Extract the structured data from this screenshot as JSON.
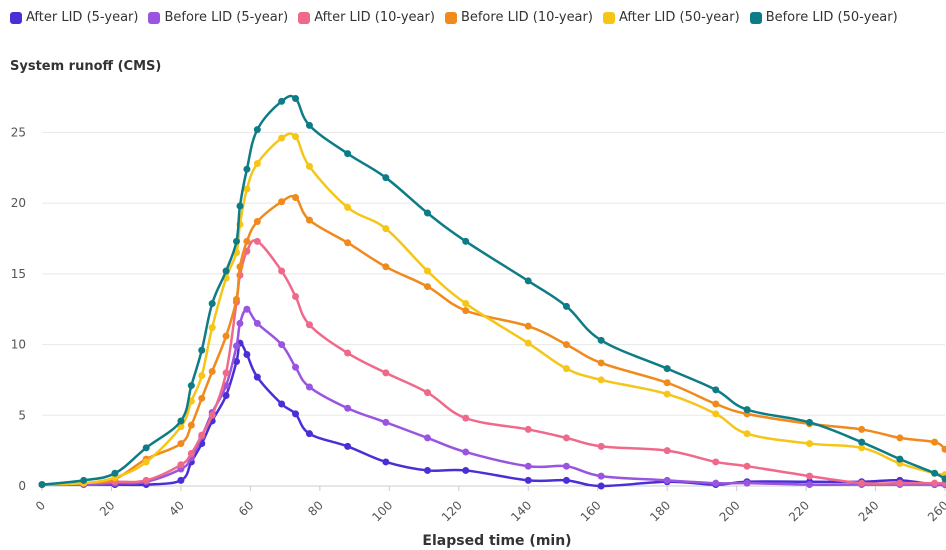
{
  "chart_data": {
    "type": "line",
    "y_title": "System runoff (CMS)",
    "x_label": "Elapsed time (min)",
    "x": [
      0,
      12,
      21,
      30,
      40,
      43,
      46,
      49,
      53,
      56,
      57,
      59,
      62,
      69,
      73,
      77,
      88,
      99,
      111,
      122,
      140,
      151,
      161,
      180,
      194,
      203,
      221,
      236,
      247,
      257,
      260
    ],
    "xlim": [
      0,
      260
    ],
    "xticks": [
      0,
      20,
      40,
      60,
      80,
      100,
      120,
      140,
      160,
      180,
      200,
      220,
      240,
      260
    ],
    "ylim": [
      0,
      28
    ],
    "yticks": [
      0,
      5,
      10,
      15,
      20,
      25
    ],
    "grid": true,
    "series": [
      {
        "name": "After LID (5-year)",
        "color": "#4a2fd6",
        "values": [
          0.1,
          0.1,
          0.1,
          0.1,
          0.4,
          1.7,
          3.0,
          4.6,
          6.4,
          8.8,
          10.1,
          9.3,
          7.7,
          5.8,
          5.1,
          3.7,
          2.8,
          1.7,
          1.1,
          1.1,
          0.4,
          0.4,
          0.0,
          0.3,
          0.1,
          0.3,
          0.3,
          0.3,
          0.4,
          0.1,
          0.1
        ]
      },
      {
        "name": "Before LID (5-year)",
        "color": "#9a55e0",
        "values": [
          0.1,
          0.1,
          0.2,
          0.3,
          1.2,
          2.0,
          3.5,
          5.2,
          7.1,
          9.9,
          11.5,
          12.5,
          11.5,
          10.0,
          8.4,
          7.0,
          5.5,
          4.5,
          3.4,
          2.4,
          1.4,
          1.4,
          0.7,
          0.4,
          0.2,
          0.2,
          0.1,
          0.1,
          0.1,
          0.1,
          0.1
        ]
      },
      {
        "name": "After LID (10-year)",
        "color": "#ef6a8a",
        "values": [
          0.1,
          0.2,
          0.3,
          0.4,
          1.5,
          2.3,
          3.6,
          5.0,
          8.0,
          13.0,
          14.9,
          16.6,
          17.3,
          15.2,
          13.4,
          11.4,
          9.4,
          8.0,
          6.6,
          4.8,
          4.0,
          3.4,
          2.8,
          2.5,
          1.7,
          1.4,
          0.7,
          0.2,
          0.2,
          0.2,
          0.2
        ]
      },
      {
        "name": "Before LID (10-year)",
        "color": "#f08a1c",
        "values": [
          0.1,
          0.2,
          0.5,
          1.9,
          3.0,
          4.3,
          6.2,
          8.1,
          10.6,
          13.2,
          15.5,
          17.3,
          18.7,
          20.1,
          20.4,
          18.8,
          17.2,
          15.5,
          14.1,
          12.4,
          11.3,
          10.0,
          8.7,
          7.3,
          5.8,
          5.1,
          4.4,
          4.0,
          3.4,
          3.1,
          2.6
        ]
      },
      {
        "name": "After LID (50-year)",
        "color": "#f5c518",
        "values": [
          0.1,
          0.2,
          0.6,
          1.7,
          4.2,
          6.0,
          7.8,
          11.2,
          14.7,
          16.5,
          18.5,
          21.0,
          22.8,
          24.6,
          24.7,
          22.6,
          19.7,
          18.2,
          15.2,
          12.9,
          10.1,
          8.3,
          7.5,
          6.5,
          5.1,
          3.7,
          3.0,
          2.7,
          1.6,
          0.9,
          0.8
        ]
      },
      {
        "name": "Before LID (50-year)",
        "color": "#0e7c86",
        "values": [
          0.1,
          0.4,
          0.9,
          2.7,
          4.6,
          7.1,
          9.6,
          12.9,
          15.2,
          17.3,
          19.8,
          22.4,
          25.2,
          27.2,
          27.4,
          25.5,
          23.5,
          21.8,
          19.3,
          17.3,
          14.5,
          12.7,
          10.3,
          8.3,
          6.8,
          5.4,
          4.5,
          3.1,
          1.9,
          0.9,
          0.5
        ]
      }
    ]
  }
}
